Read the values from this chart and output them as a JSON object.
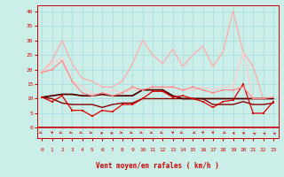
{
  "title": "",
  "xlabel": "Vent moyen/en rafales ( km/h )",
  "background_color": "#cceee8",
  "grid_color": "#aadddd",
  "x_ticks": [
    0,
    1,
    2,
    3,
    4,
    5,
    6,
    7,
    8,
    9,
    10,
    11,
    12,
    13,
    14,
    15,
    16,
    17,
    18,
    19,
    20,
    21,
    22,
    23
  ],
  "y_ticks": [
    0,
    5,
    10,
    15,
    20,
    25,
    30,
    35,
    40
  ],
  "ylim": [
    0,
    42
  ],
  "xlim": [
    -0.5,
    23.5
  ],
  "series": [
    {
      "y": [
        10.5,
        9,
        11,
        6,
        6,
        4,
        6,
        5.5,
        8,
        8,
        10,
        12.5,
        12.5,
        10.5,
        11,
        10,
        9,
        7,
        9,
        9.5,
        15,
        5,
        5,
        9
      ],
      "color": "#dd0000",
      "lw": 0.9,
      "marker": "s",
      "ms": 2.0,
      "zorder": 5
    },
    {
      "y": [
        10.5,
        11,
        11.5,
        11.5,
        11,
        11,
        11.5,
        11,
        11,
        11,
        13,
        13,
        13,
        11,
        10,
        10,
        10,
        10,
        10,
        10,
        10,
        10,
        10,
        10
      ],
      "color": "#550000",
      "lw": 1.3,
      "marker": null,
      "ms": 0,
      "zorder": 4
    },
    {
      "y": [
        10.5,
        10,
        8.5,
        8,
        8,
        8,
        7,
        8,
        8.5,
        8.5,
        10,
        10,
        10,
        10,
        10,
        10,
        10,
        8,
        8,
        8,
        9,
        8,
        8,
        8.5
      ],
      "color": "#880000",
      "lw": 1.0,
      "marker": null,
      "ms": 0,
      "zorder": 3
    },
    {
      "y": [
        19,
        20,
        23,
        16,
        12,
        11,
        12,
        11,
        12,
        14,
        13,
        14,
        14,
        14,
        13,
        14,
        13,
        12,
        13,
        13,
        14,
        10,
        10,
        10.5
      ],
      "color": "#ff8888",
      "lw": 0.9,
      "marker": "s",
      "ms": 2.0,
      "zorder": 5
    },
    {
      "y": [
        19,
        23,
        30,
        22,
        17,
        16,
        14,
        14,
        16,
        22,
        30,
        25,
        22,
        27,
        21,
        25,
        28,
        21,
        26,
        40,
        26,
        21,
        10,
        10.5
      ],
      "color": "#ffaaaa",
      "lw": 0.9,
      "marker": null,
      "ms": 0,
      "zorder": 2
    },
    {
      "y": [
        19,
        22,
        24,
        16,
        14,
        12,
        11,
        13,
        12,
        13,
        13,
        13,
        13,
        14,
        13,
        13,
        14,
        13,
        14,
        14,
        26,
        10,
        10,
        10.5
      ],
      "color": "#ffcccc",
      "lw": 0.9,
      "marker": null,
      "ms": 0,
      "zorder": 2
    }
  ],
  "wind_directions": [
    45,
    0,
    45,
    45,
    45,
    45,
    90,
    90,
    45,
    45,
    45,
    45,
    45,
    0,
    45,
    -45,
    0,
    0,
    -45,
    -90,
    -90,
    -135,
    -135,
    -135
  ],
  "wind_arrow_color": "#cc0000",
  "tick_color": "#cc0000",
  "spine_color": "#cc0000"
}
